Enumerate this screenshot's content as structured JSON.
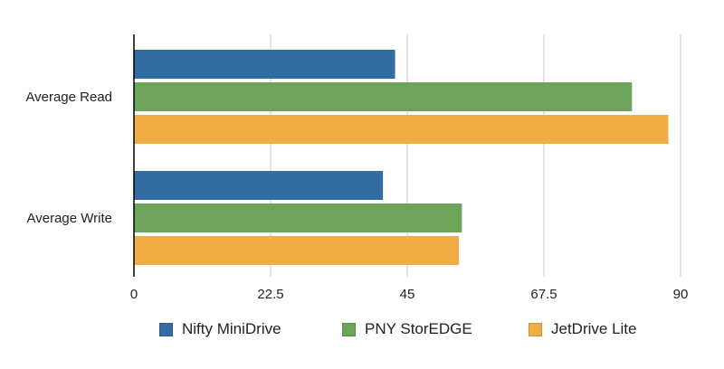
{
  "chart_data": {
    "type": "bar",
    "orientation": "horizontal",
    "categories": [
      "Average Read",
      "Average Write"
    ],
    "series": [
      {
        "name": "Nifty MiniDrive",
        "color": "#336ba3",
        "values": [
          43,
          41
        ]
      },
      {
        "name": "PNY StorEDGE",
        "color": "#6ca55a",
        "values": [
          82,
          54
        ]
      },
      {
        "name": "JetDrive Lite",
        "color": "#f0ad46",
        "values": [
          88,
          53.5
        ]
      }
    ],
    "xlim": [
      0,
      90
    ],
    "xticks": [
      "0",
      "22.5",
      "45",
      "67.5",
      "90"
    ],
    "grid": true,
    "legend_position": "bottom"
  }
}
